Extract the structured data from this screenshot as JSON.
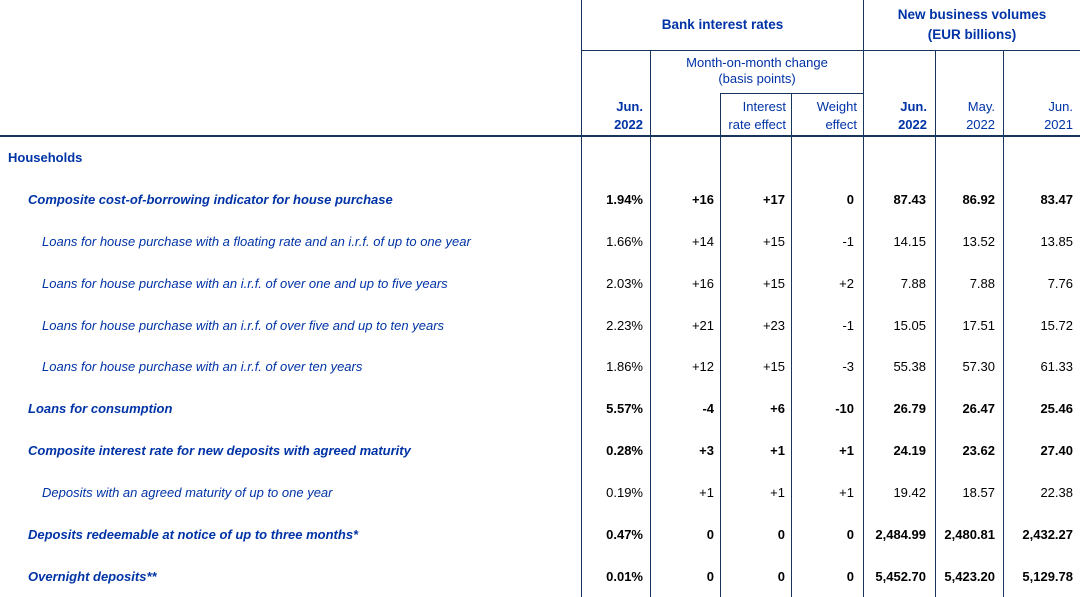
{
  "colors": {
    "text_blue": "#0033a6",
    "grid_navy": "#16365d",
    "value_black": "#000000"
  },
  "table": {
    "header": {
      "group_rates": "Bank interest rates",
      "group_volumes_line1": "New business volumes",
      "group_volumes_line2": "(EUR billions)",
      "subgroup_line1": "Month-on-month change",
      "subgroup_line2": "(basis points)",
      "cols": [
        {
          "l1": "Jun.",
          "l2": "2022"
        },
        {
          "l1": "Interest",
          "l2": "rate effect"
        },
        {
          "l1": "Weight",
          "l2": "effect"
        },
        {
          "l1": "Jun.",
          "l2": "2022"
        },
        {
          "l1": "May.",
          "l2": "2022"
        },
        {
          "l1": "Jun.",
          "l2": "2021"
        }
      ]
    },
    "rows": [
      {
        "label": "Households",
        "level": 0,
        "emphasis": true,
        "values": []
      },
      {
        "label": "Composite cost-of-borrowing indicator for house purchase",
        "level": 1,
        "emphasis": true,
        "values": [
          "1.94%",
          "+16",
          "+17",
          "0",
          "87.43",
          "86.92",
          "83.47"
        ]
      },
      {
        "label": "Loans for house purchase with a floating rate and an i.r.f. of up to one year",
        "level": 2,
        "emphasis": false,
        "values": [
          "1.66%",
          "+14",
          "+15",
          "-1",
          "14.15",
          "13.52",
          "13.85"
        ]
      },
      {
        "label": "Loans for house purchase with an i.r.f. of over one and up to five years",
        "level": 2,
        "emphasis": false,
        "values": [
          "2.03%",
          "+16",
          "+15",
          "+2",
          "7.88",
          "7.88",
          "7.76"
        ]
      },
      {
        "label": "Loans for house purchase with an i.r.f. of over five and up to ten years",
        "level": 2,
        "emphasis": false,
        "values": [
          "2.23%",
          "+21",
          "+23",
          "-1",
          "15.05",
          "17.51",
          "15.72"
        ]
      },
      {
        "label": "Loans for house purchase with an i.r.f. of over ten years",
        "level": 2,
        "emphasis": false,
        "values": [
          "1.86%",
          "+12",
          "+15",
          "-3",
          "55.38",
          "57.30",
          "61.33"
        ]
      },
      {
        "label": "Loans for consumption",
        "level": 1,
        "emphasis": true,
        "values": [
          "5.57%",
          "-4",
          "+6",
          "-10",
          "26.79",
          "26.47",
          "25.46"
        ]
      },
      {
        "label": "Composite interest rate for new deposits with agreed maturity",
        "level": 1,
        "emphasis": true,
        "values": [
          "0.28%",
          "+3",
          "+1",
          "+1",
          "24.19",
          "23.62",
          "27.40"
        ]
      },
      {
        "label": "Deposits with an agreed maturity of up to one year",
        "level": 2,
        "emphasis": false,
        "values": [
          "0.19%",
          "+1",
          "+1",
          "+1",
          "19.42",
          "18.57",
          "22.38"
        ]
      },
      {
        "label": "Deposits redeemable at notice of up to three months*",
        "level": 1,
        "emphasis": true,
        "values": [
          "0.47%",
          "0",
          "0",
          "0",
          "2,484.99",
          "2,480.81",
          "2,432.27"
        ]
      },
      {
        "label": "Overnight deposits**",
        "level": 1,
        "emphasis": true,
        "values": [
          "0.01%",
          "0",
          "0",
          "0",
          "5,452.70",
          "5,423.20",
          "5,129.78"
        ]
      }
    ]
  },
  "chart_data": {
    "type": "table",
    "title": "Bank interest rates and new business volumes (EUR billions)",
    "columns": [
      "Jun. 2022 rate",
      "Month-on-month change (bp)",
      "Interest rate effect (bp)",
      "Weight effect (bp)",
      "Jun. 2022 volume",
      "May. 2022 volume",
      "Jun. 2021 volume"
    ],
    "section": "Households",
    "records": [
      {
        "item": "Composite cost-of-borrowing indicator for house purchase",
        "rate": "1.94%",
        "mom_change": 16,
        "interest_rate_effect": 17,
        "weight_effect": 0,
        "vol_jun_2022": 87.43,
        "vol_may_2022": 86.92,
        "vol_jun_2021": 83.47
      },
      {
        "item": "Loans for house purchase with a floating rate and an i.r.f. of up to one year",
        "rate": "1.66%",
        "mom_change": 14,
        "interest_rate_effect": 15,
        "weight_effect": -1,
        "vol_jun_2022": 14.15,
        "vol_may_2022": 13.52,
        "vol_jun_2021": 13.85
      },
      {
        "item": "Loans for house purchase with an i.r.f. of over one and up to five years",
        "rate": "2.03%",
        "mom_change": 16,
        "interest_rate_effect": 15,
        "weight_effect": 2,
        "vol_jun_2022": 7.88,
        "vol_may_2022": 7.88,
        "vol_jun_2021": 7.76
      },
      {
        "item": "Loans for house purchase with an i.r.f. of over five and up to ten years",
        "rate": "2.23%",
        "mom_change": 21,
        "interest_rate_effect": 23,
        "weight_effect": -1,
        "vol_jun_2022": 15.05,
        "vol_may_2022": 17.51,
        "vol_jun_2021": 15.72
      },
      {
        "item": "Loans for house purchase with an i.r.f. of over ten years",
        "rate": "1.86%",
        "mom_change": 12,
        "interest_rate_effect": 15,
        "weight_effect": -3,
        "vol_jun_2022": 55.38,
        "vol_may_2022": 57.3,
        "vol_jun_2021": 61.33
      },
      {
        "item": "Loans for consumption",
        "rate": "5.57%",
        "mom_change": -4,
        "interest_rate_effect": 6,
        "weight_effect": -10,
        "vol_jun_2022": 26.79,
        "vol_may_2022": 26.47,
        "vol_jun_2021": 25.46
      },
      {
        "item": "Composite interest rate for new deposits with agreed maturity",
        "rate": "0.28%",
        "mom_change": 3,
        "interest_rate_effect": 1,
        "weight_effect": 1,
        "vol_jun_2022": 24.19,
        "vol_may_2022": 23.62,
        "vol_jun_2021": 27.4
      },
      {
        "item": "Deposits with an agreed maturity of up to one year",
        "rate": "0.19%",
        "mom_change": 1,
        "interest_rate_effect": 1,
        "weight_effect": 1,
        "vol_jun_2022": 19.42,
        "vol_may_2022": 18.57,
        "vol_jun_2021": 22.38
      },
      {
        "item": "Deposits redeemable at notice of up to three months*",
        "rate": "0.47%",
        "mom_change": 0,
        "interest_rate_effect": 0,
        "weight_effect": 0,
        "vol_jun_2022": 2484.99,
        "vol_may_2022": 2480.81,
        "vol_jun_2021": 2432.27
      },
      {
        "item": "Overnight deposits**",
        "rate": "0.01%",
        "mom_change": 0,
        "interest_rate_effect": 0,
        "weight_effect": 0,
        "vol_jun_2022": 5452.7,
        "vol_may_2022": 5423.2,
        "vol_jun_2021": 5129.78
      }
    ]
  }
}
